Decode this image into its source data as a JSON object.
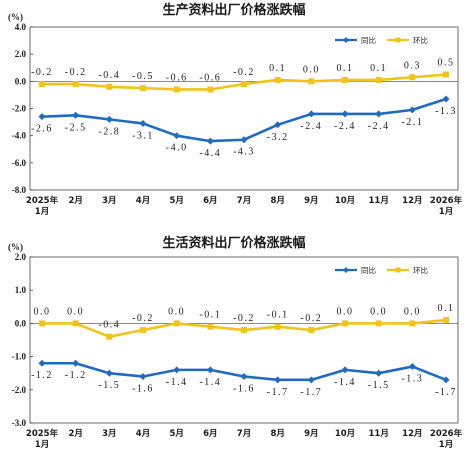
{
  "chart_data": [
    {
      "type": "line",
      "title": "生产资料出厂价格涨跌幅",
      "unit": "(%)",
      "categories": [
        "2025年\n1月",
        "2月",
        "3月",
        "4月",
        "5月",
        "6月",
        "7月",
        "8月",
        "9月",
        "10月",
        "11月",
        "12月",
        "2026年\n1月"
      ],
      "series": [
        {
          "name": "同比",
          "color": "#1f6bc2",
          "marker": "diamond",
          "values": [
            -2.6,
            -2.5,
            -2.8,
            -3.1,
            -4.0,
            -4.4,
            -4.3,
            -3.2,
            -2.4,
            -2.4,
            -2.4,
            -2.1,
            -1.3
          ],
          "labels": [
            "-2.6",
            "-2.5",
            "-2.8",
            "-3.1",
            "-4.0",
            "-4.4",
            "-4.3",
            "-3.2",
            "-2.4",
            "-2.4",
            "-2.4",
            "-2.1",
            "-1.3"
          ]
        },
        {
          "name": "环比",
          "color": "#f0c419",
          "marker": "square",
          "values": [
            -0.2,
            -0.2,
            -0.4,
            -0.5,
            -0.6,
            -0.6,
            -0.2,
            0.1,
            0.0,
            0.1,
            0.1,
            0.3,
            0.5
          ],
          "labels": [
            "-0.2",
            "-0.2",
            "-0.4",
            "-0.5",
            "-0.6",
            "-0.6",
            "-0.2",
            "0.1",
            "0.0",
            "0.1",
            "0.1",
            "0.3",
            "0.5"
          ]
        }
      ],
      "ylim": [
        -8.0,
        4.0
      ],
      "yticks": [
        "4.0",
        "2.0",
        "0.0",
        "-2.0",
        "-4.0",
        "-6.0",
        "-8.0"
      ],
      "ytick_values": [
        4,
        2,
        0,
        -2,
        -4,
        -6,
        -8
      ],
      "legend": "top-right",
      "grid": false
    },
    {
      "type": "line",
      "title": "生活资料出厂价格涨跌幅",
      "unit": "(%)",
      "categories": [
        "2025年\n1月",
        "2月",
        "3月",
        "4月",
        "5月",
        "6月",
        "7月",
        "8月",
        "9月",
        "10月",
        "11月",
        "12月",
        "2026年\n1月"
      ],
      "series": [
        {
          "name": "同比",
          "color": "#1f6bc2",
          "marker": "diamond",
          "values": [
            -1.2,
            -1.2,
            -1.5,
            -1.6,
            -1.4,
            -1.4,
            -1.6,
            -1.7,
            -1.7,
            -1.4,
            -1.5,
            -1.3,
            -1.7
          ],
          "labels": [
            "-1.2",
            "-1.2",
            "-1.5",
            "-1.6",
            "-1.4",
            "-1.4",
            "-1.6",
            "-1.7",
            "-1.7",
            "-1.4",
            "-1.5",
            "-1.3",
            "-1.7"
          ]
        },
        {
          "name": "环比",
          "color": "#f0c419",
          "marker": "square",
          "values": [
            0.0,
            0.0,
            -0.4,
            -0.2,
            0.0,
            -0.1,
            -0.2,
            -0.1,
            -0.2,
            0.0,
            0.0,
            0.0,
            0.1
          ],
          "labels": [
            "0.0",
            "0.0",
            "-0.4",
            "-0.2",
            "0.0",
            "-0.1",
            "-0.2",
            "-0.1",
            "-0.2",
            "0.0",
            "0.0",
            "0.0",
            "0.1"
          ]
        }
      ],
      "ylim": [
        -3.0,
        2.0
      ],
      "yticks": [
        "2.0",
        "1.0",
        "0.0",
        "-1.0",
        "-2.0",
        "-3.0"
      ],
      "ytick_values": [
        2,
        1,
        0,
        -1,
        -2,
        -3
      ],
      "legend": "top-right",
      "grid": false
    }
  ]
}
